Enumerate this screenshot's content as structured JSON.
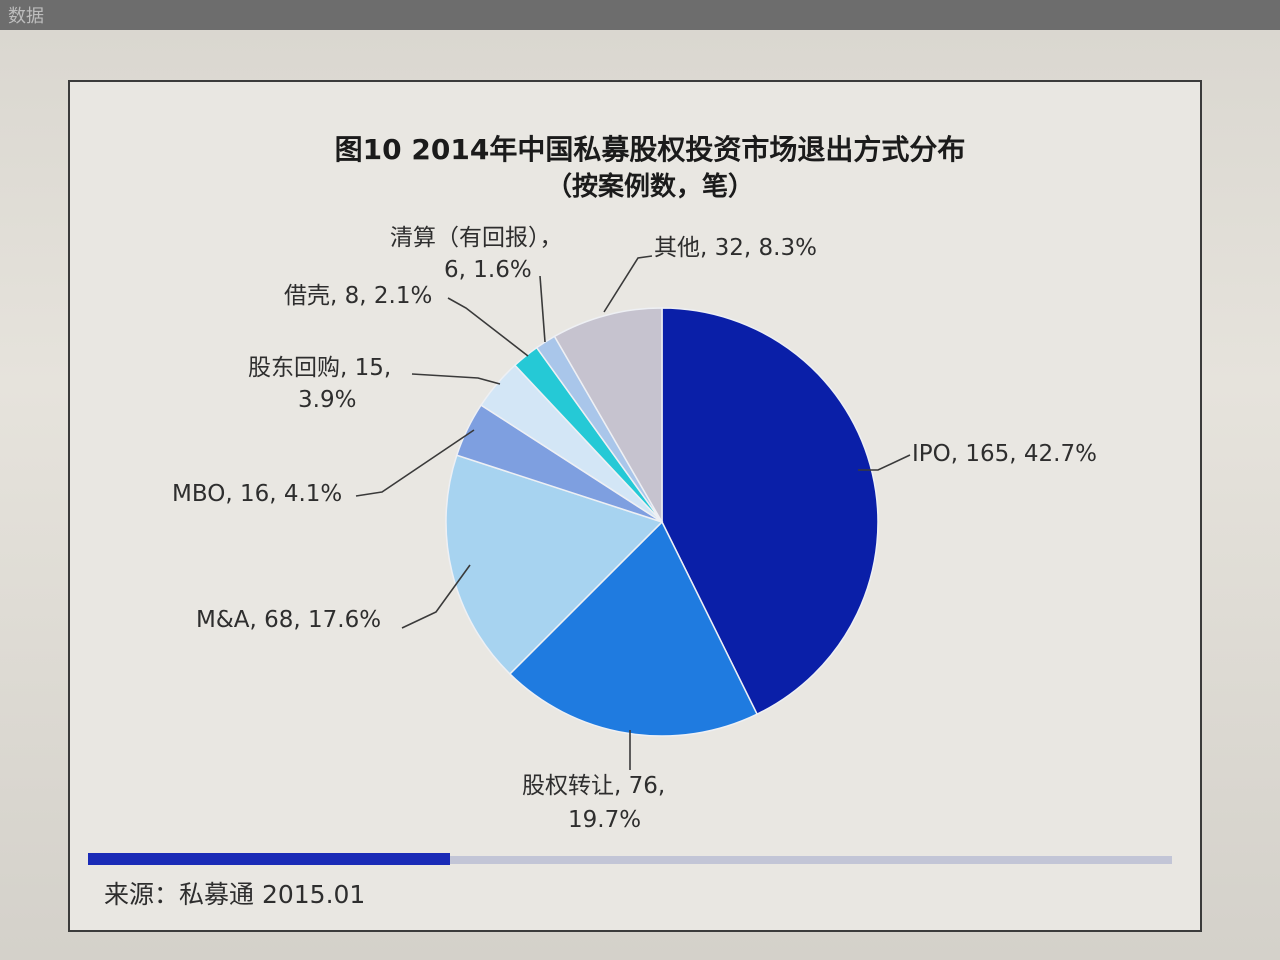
{
  "chart_data": {
    "type": "pie",
    "title": "图10 2014年中国私募股权投资市场退出方式分布",
    "subtitle": "（按案例数，笔）",
    "slices": [
      {
        "name": "IPO",
        "value": 165,
        "percent": "42.7%",
        "color": "#0a1fa8",
        "label": "IPO, 165, 42.7%"
      },
      {
        "name": "股权转让",
        "value": 76,
        "percent": "19.7%",
        "color": "#1f7be0",
        "label_l1": "股权转让, 76,",
        "label_l2": "19.7%"
      },
      {
        "name": "M&A",
        "value": 68,
        "percent": "17.6%",
        "color": "#a7d3f0",
        "label": "M&A, 68, 17.6%"
      },
      {
        "name": "MBO",
        "value": 16,
        "percent": "4.1%",
        "color": "#7e9fe0",
        "label": "MBO, 16, 4.1%"
      },
      {
        "name": "股东回购",
        "value": 15,
        "percent": "3.9%",
        "color": "#d3e6f6",
        "label_l1": "股东回购, 15,",
        "label_l2": "3.9%"
      },
      {
        "name": "借壳",
        "value": 8,
        "percent": "2.1%",
        "color": "#25c9d6",
        "label": "借壳, 8, 2.1%"
      },
      {
        "name": "清算（有回报）",
        "value": 6,
        "percent": "1.6%",
        "color": "#a9c6ea",
        "label_l1": "清算（有回报），",
        "label_l2": "6, 1.6%"
      },
      {
        "name": "其他",
        "value": 32,
        "percent": "8.3%",
        "color": "#c6c3cf",
        "label": "其他, 32, 8.3%"
      }
    ]
  },
  "footer": {
    "source": "来源：私募通 2015.01"
  },
  "top_strip_text": "数据"
}
